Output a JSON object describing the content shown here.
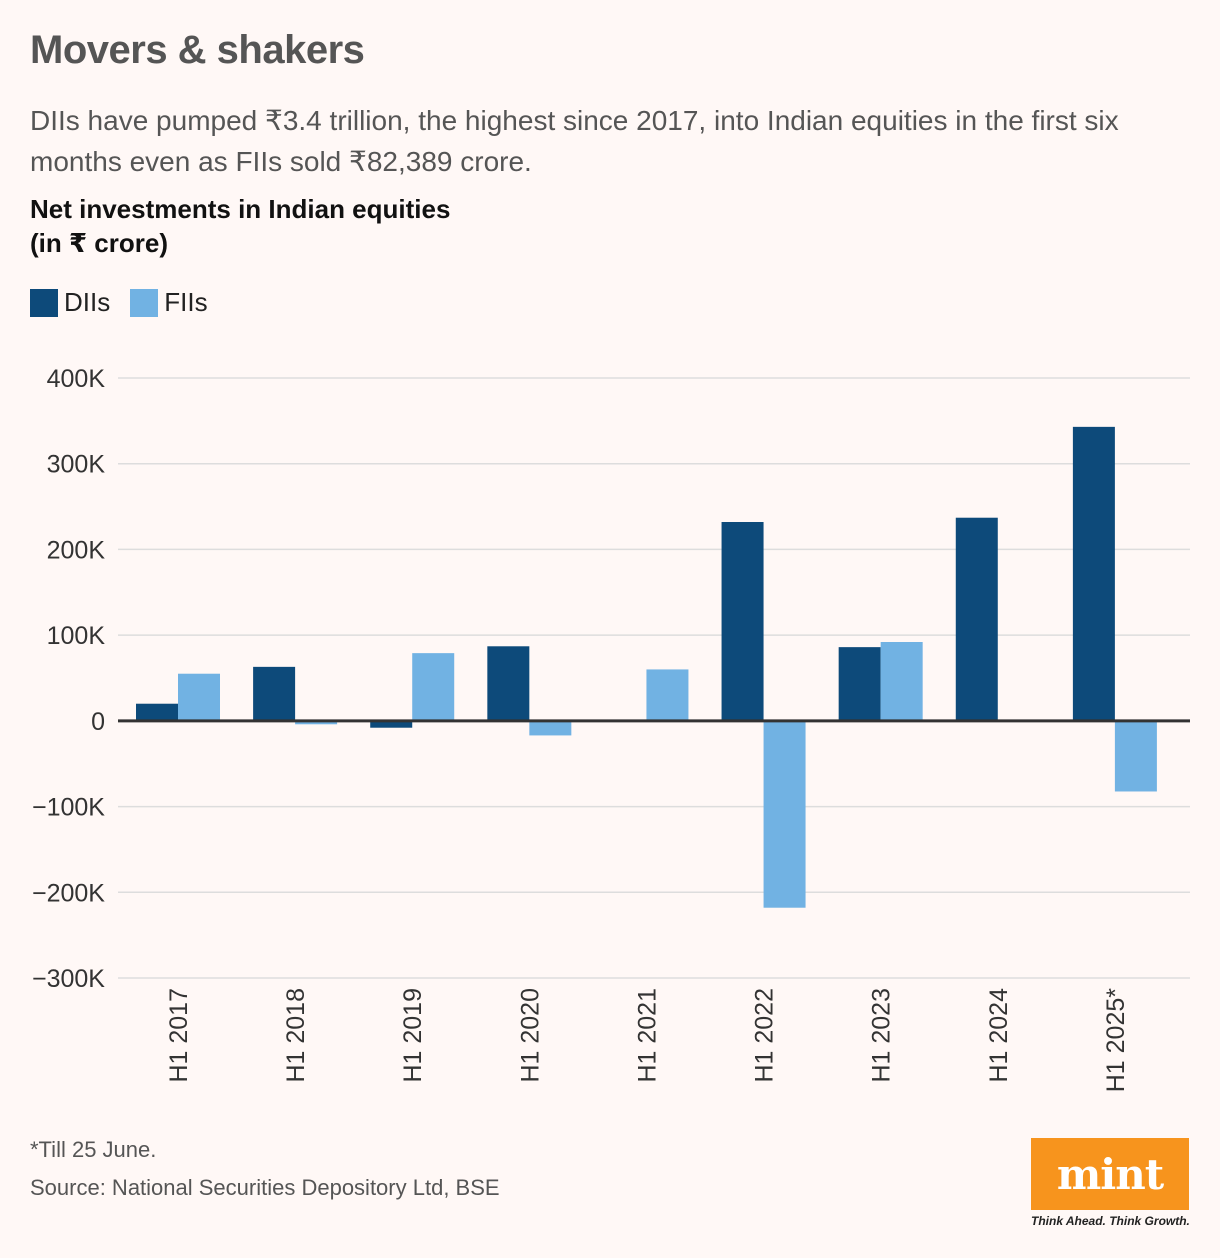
{
  "header": {
    "title": "Movers & shakers",
    "subtitle": "DIIs have pumped ₹3.4 trillion, the highest since 2017, into Indian equities in the first six months even as FIIs sold ₹82,389 crore.",
    "chart_title_line1": "Net investments in Indian equities",
    "chart_title_line2": "(in ₹ crore)"
  },
  "colors": {
    "dii": "#0d4a7a",
    "fii": "#71b2e3",
    "grid": "#dddddd",
    "zero": "#333333",
    "background": "#fff8f6",
    "logo": "#f7941d"
  },
  "chart_data": {
    "type": "bar",
    "title": "Net investments in Indian equities (in ₹ crore)",
    "categories": [
      "H1 2017",
      "H1 2018",
      "H1 2019",
      "H1 2020",
      "H1 2021",
      "H1 2022",
      "H1 2023",
      "H1 2024",
      "H1 2025*"
    ],
    "series": [
      {
        "name": "DIIs",
        "values": [
          20000,
          63000,
          -8000,
          87000,
          0,
          232000,
          86000,
          237000,
          343000
        ]
      },
      {
        "name": "FIIs",
        "values": [
          55000,
          -4000,
          79000,
          -17000,
          60000,
          -218000,
          92000,
          0,
          -82389
        ]
      }
    ],
    "yticks": [
      400000,
      300000,
      200000,
      100000,
      0,
      -100000,
      -200000,
      -300000
    ],
    "ytick_labels": [
      "400K",
      "300K",
      "200K",
      "100K",
      "0",
      "−100K",
      "−200K",
      "−300K"
    ],
    "ylim": [
      -300000,
      400000
    ],
    "xlabel": "",
    "ylabel": "",
    "legend": "top-left",
    "grid": true
  },
  "footer": {
    "note": "*Till 25 June.",
    "source": "Source: National Securities Depository Ltd, BSE",
    "logo": "mint",
    "tagline": "Think Ahead. Think Growth."
  }
}
